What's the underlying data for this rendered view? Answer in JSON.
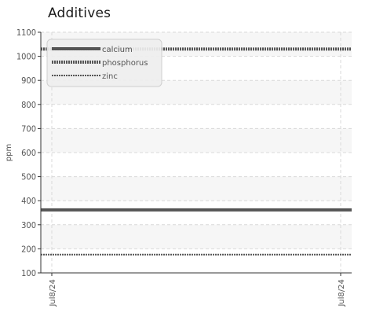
{
  "chart_data": {
    "type": "line",
    "title": "Additives",
    "xlabel": "",
    "ylabel": "ppm",
    "categories": [
      "Jul8/24",
      "Jul8/24"
    ],
    "ylim": [
      100,
      1100
    ],
    "yticks": [
      100,
      200,
      300,
      400,
      500,
      600,
      700,
      800,
      900,
      1000,
      1100
    ],
    "grid": true,
    "legend_position": "top-left",
    "series": [
      {
        "name": "calcium",
        "values": [
          362,
          362
        ],
        "style": "solid",
        "color": "#555555"
      },
      {
        "name": "phosphorus",
        "values": [
          1030,
          1030
        ],
        "style": "dashed",
        "color": "#555555"
      },
      {
        "name": "zinc",
        "values": [
          176,
          176
        ],
        "style": "dotted",
        "color": "#555555"
      }
    ]
  }
}
